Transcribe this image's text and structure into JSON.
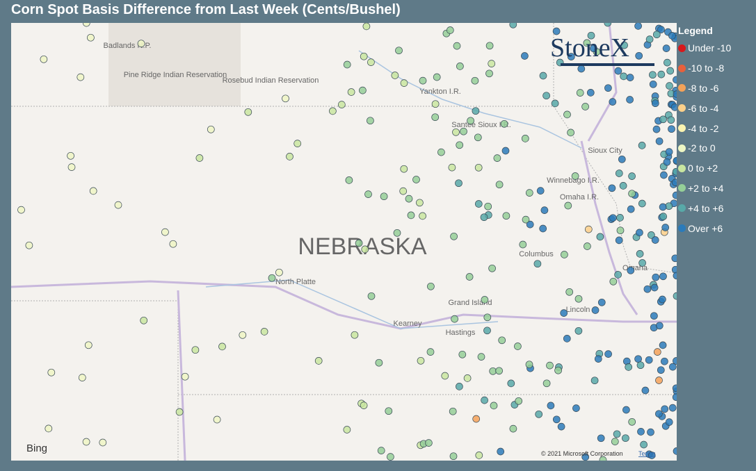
{
  "title": "Corn Spot Basis Difference from Last Week (Cents/Bushel)",
  "legend": {
    "title": "Legend",
    "items": [
      {
        "label": "Under -10",
        "color": "#d7191c"
      },
      {
        "label": "-10 to -8",
        "color": "#e8603c"
      },
      {
        "label": "-8 to -6",
        "color": "#f4a259"
      },
      {
        "label": "-6 to -4",
        "color": "#fdd08a"
      },
      {
        "label": "-4 to -2",
        "color": "#fbf3b0"
      },
      {
        "label": "-2 to 0",
        "color": "#eef6c4"
      },
      {
        "label": "0 to +2",
        "color": "#c9e6a0"
      },
      {
        "label": "+2 to +4",
        "color": "#95cf98"
      },
      {
        "label": "+4 to +6",
        "color": "#58a9a8"
      },
      {
        "label": "Over +6",
        "color": "#2b7bba"
      }
    ]
  },
  "map": {
    "state": "NEBRASKA",
    "places": [
      "Badlands N.P.",
      "Pine Ridge Indian Reservation",
      "Rosebud Indian Reservation",
      "Yankton I.R.",
      "Santee Sioux I.R.",
      "Sioux City",
      "Winnebago I.R.",
      "Omaha I.R.",
      "Columbus",
      "Omaha",
      "North Platte",
      "Grand Island",
      "Kearney",
      "Hastings",
      "Lincoln"
    ],
    "logo": "StoneX",
    "provider": "Bing",
    "attribution": "© 2021 Microsoft Corporation",
    "terms": "Terms"
  }
}
